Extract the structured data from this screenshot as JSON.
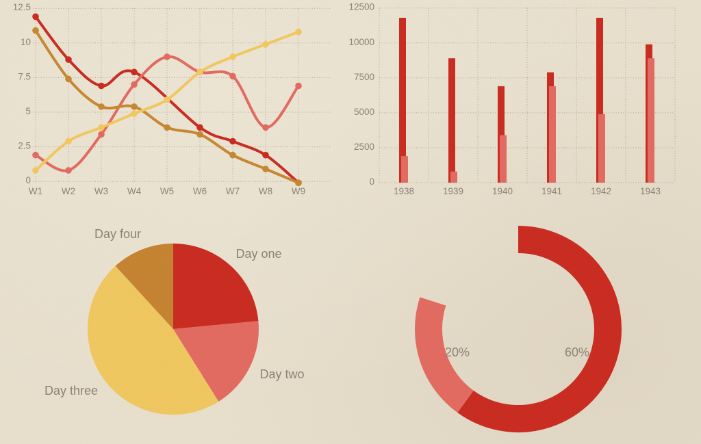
{
  "page": {
    "background": "#e8dfcc",
    "text_color": "#8b8174",
    "grid_color": "#7d6e58"
  },
  "chart_data": [
    {
      "id": "weekly-lines",
      "type": "line",
      "title": "",
      "categories": [
        "W1",
        "W2",
        "W3",
        "W4",
        "W5",
        "W6",
        "W7",
        "W8",
        "W9"
      ],
      "ylim": [
        -0.2,
        12.5
      ],
      "yticks": [
        0,
        2.5,
        5,
        7.5,
        10,
        12.5
      ],
      "ytick_labels": [
        "0",
        "2.5",
        "5",
        "7.5",
        "10",
        "12.5"
      ],
      "grid": "dotted-both",
      "legend_position": "none",
      "marker": "circle",
      "smooth": true,
      "series": [
        {
          "name": "dark-red",
          "color": "#c9291e",
          "values": [
            11.9,
            8.8,
            6.9,
            7.9,
            null,
            3.9,
            2.9,
            1.9,
            -0.1
          ]
        },
        {
          "name": "salmon",
          "color": "#e2695e",
          "values": [
            1.9,
            0.8,
            3.4,
            7.0,
            9.0,
            7.9,
            7.6,
            3.9,
            6.9
          ]
        },
        {
          "name": "orange",
          "color": "#c6862f",
          "values": [
            10.9,
            7.4,
            5.4,
            5.4,
            3.9,
            3.4,
            1.9,
            0.9,
            -0.1
          ]
        },
        {
          "name": "yellow",
          "color": "#f2c75f",
          "values": [
            0.8,
            2.9,
            3.9,
            4.9,
            5.9,
            7.9,
            9.0,
            9.9,
            10.8
          ]
        }
      ]
    },
    {
      "id": "yearly-bars",
      "type": "bar",
      "title": "",
      "categories": [
        "1938",
        "1939",
        "1940",
        "1941",
        "1942",
        "1943"
      ],
      "ylim": [
        0,
        12500
      ],
      "yticks": [
        0,
        2500,
        5000,
        7500,
        10000,
        12500
      ],
      "ytick_labels": [
        "0",
        "2500",
        "5000",
        "7500",
        "10000",
        "12500"
      ],
      "grid": "dotted-both",
      "legend_position": "none",
      "series": [
        {
          "name": "dark-red",
          "color": "#c9291e",
          "values": [
            11800,
            8900,
            6900,
            7900,
            11800,
            9900
          ]
        },
        {
          "name": "salmon",
          "color": "#e2695e",
          "values": [
            1900,
            800,
            3400,
            6900,
            4900,
            8900
          ]
        }
      ]
    },
    {
      "id": "days-pie",
      "type": "pie",
      "title": "",
      "start_angle_deg": 0,
      "slices": [
        {
          "label": "Day one",
          "value_percent": 23.5,
          "color": "#c9291e"
        },
        {
          "label": "Day two",
          "value_percent": 17.6,
          "color": "#e2695e"
        },
        {
          "label": "Day three",
          "value_percent": 47.1,
          "color": "#f0c75e"
        },
        {
          "label": "Day four",
          "value_percent": 11.8,
          "color": "#c5822f"
        }
      ]
    },
    {
      "id": "progress-donut",
      "type": "donut",
      "title": "",
      "start_angle_deg": 0,
      "segments": [
        {
          "label": "60%",
          "value_percent": 60,
          "color": "#c9291e"
        },
        {
          "label": "20%",
          "value_percent": 20,
          "color": "#e2695e"
        }
      ],
      "empty_percent": 20
    }
  ]
}
